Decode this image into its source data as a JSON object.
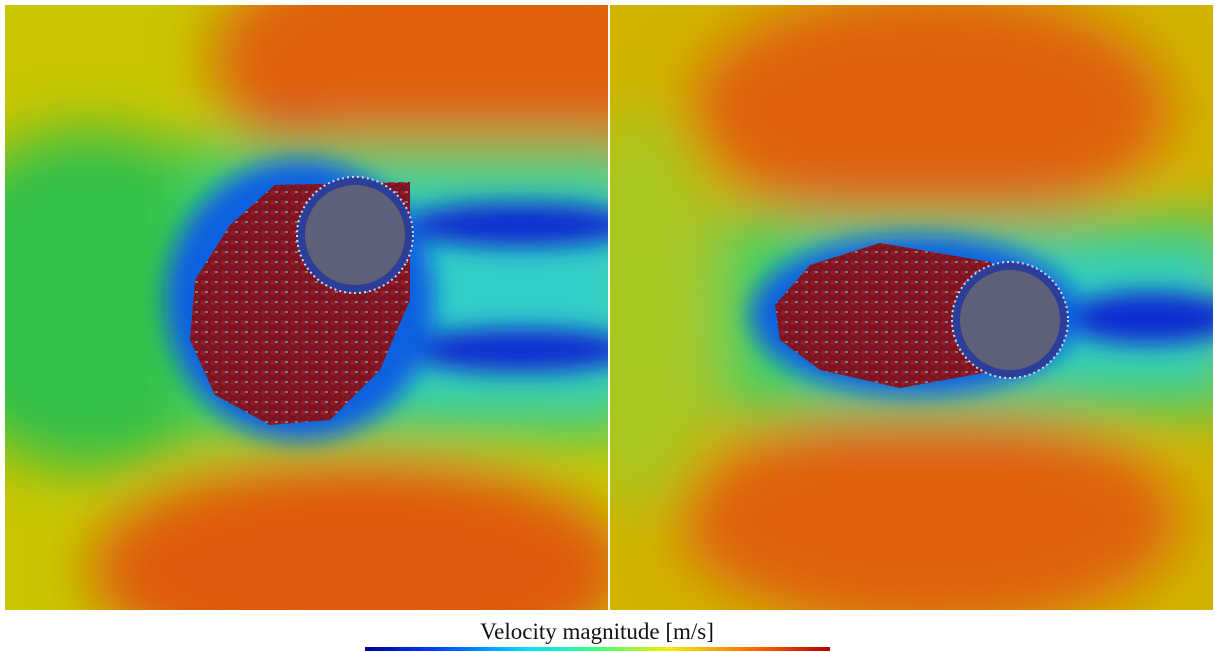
{
  "colorbar": {
    "label": "Velocity magnitude [m/s]"
  }
}
